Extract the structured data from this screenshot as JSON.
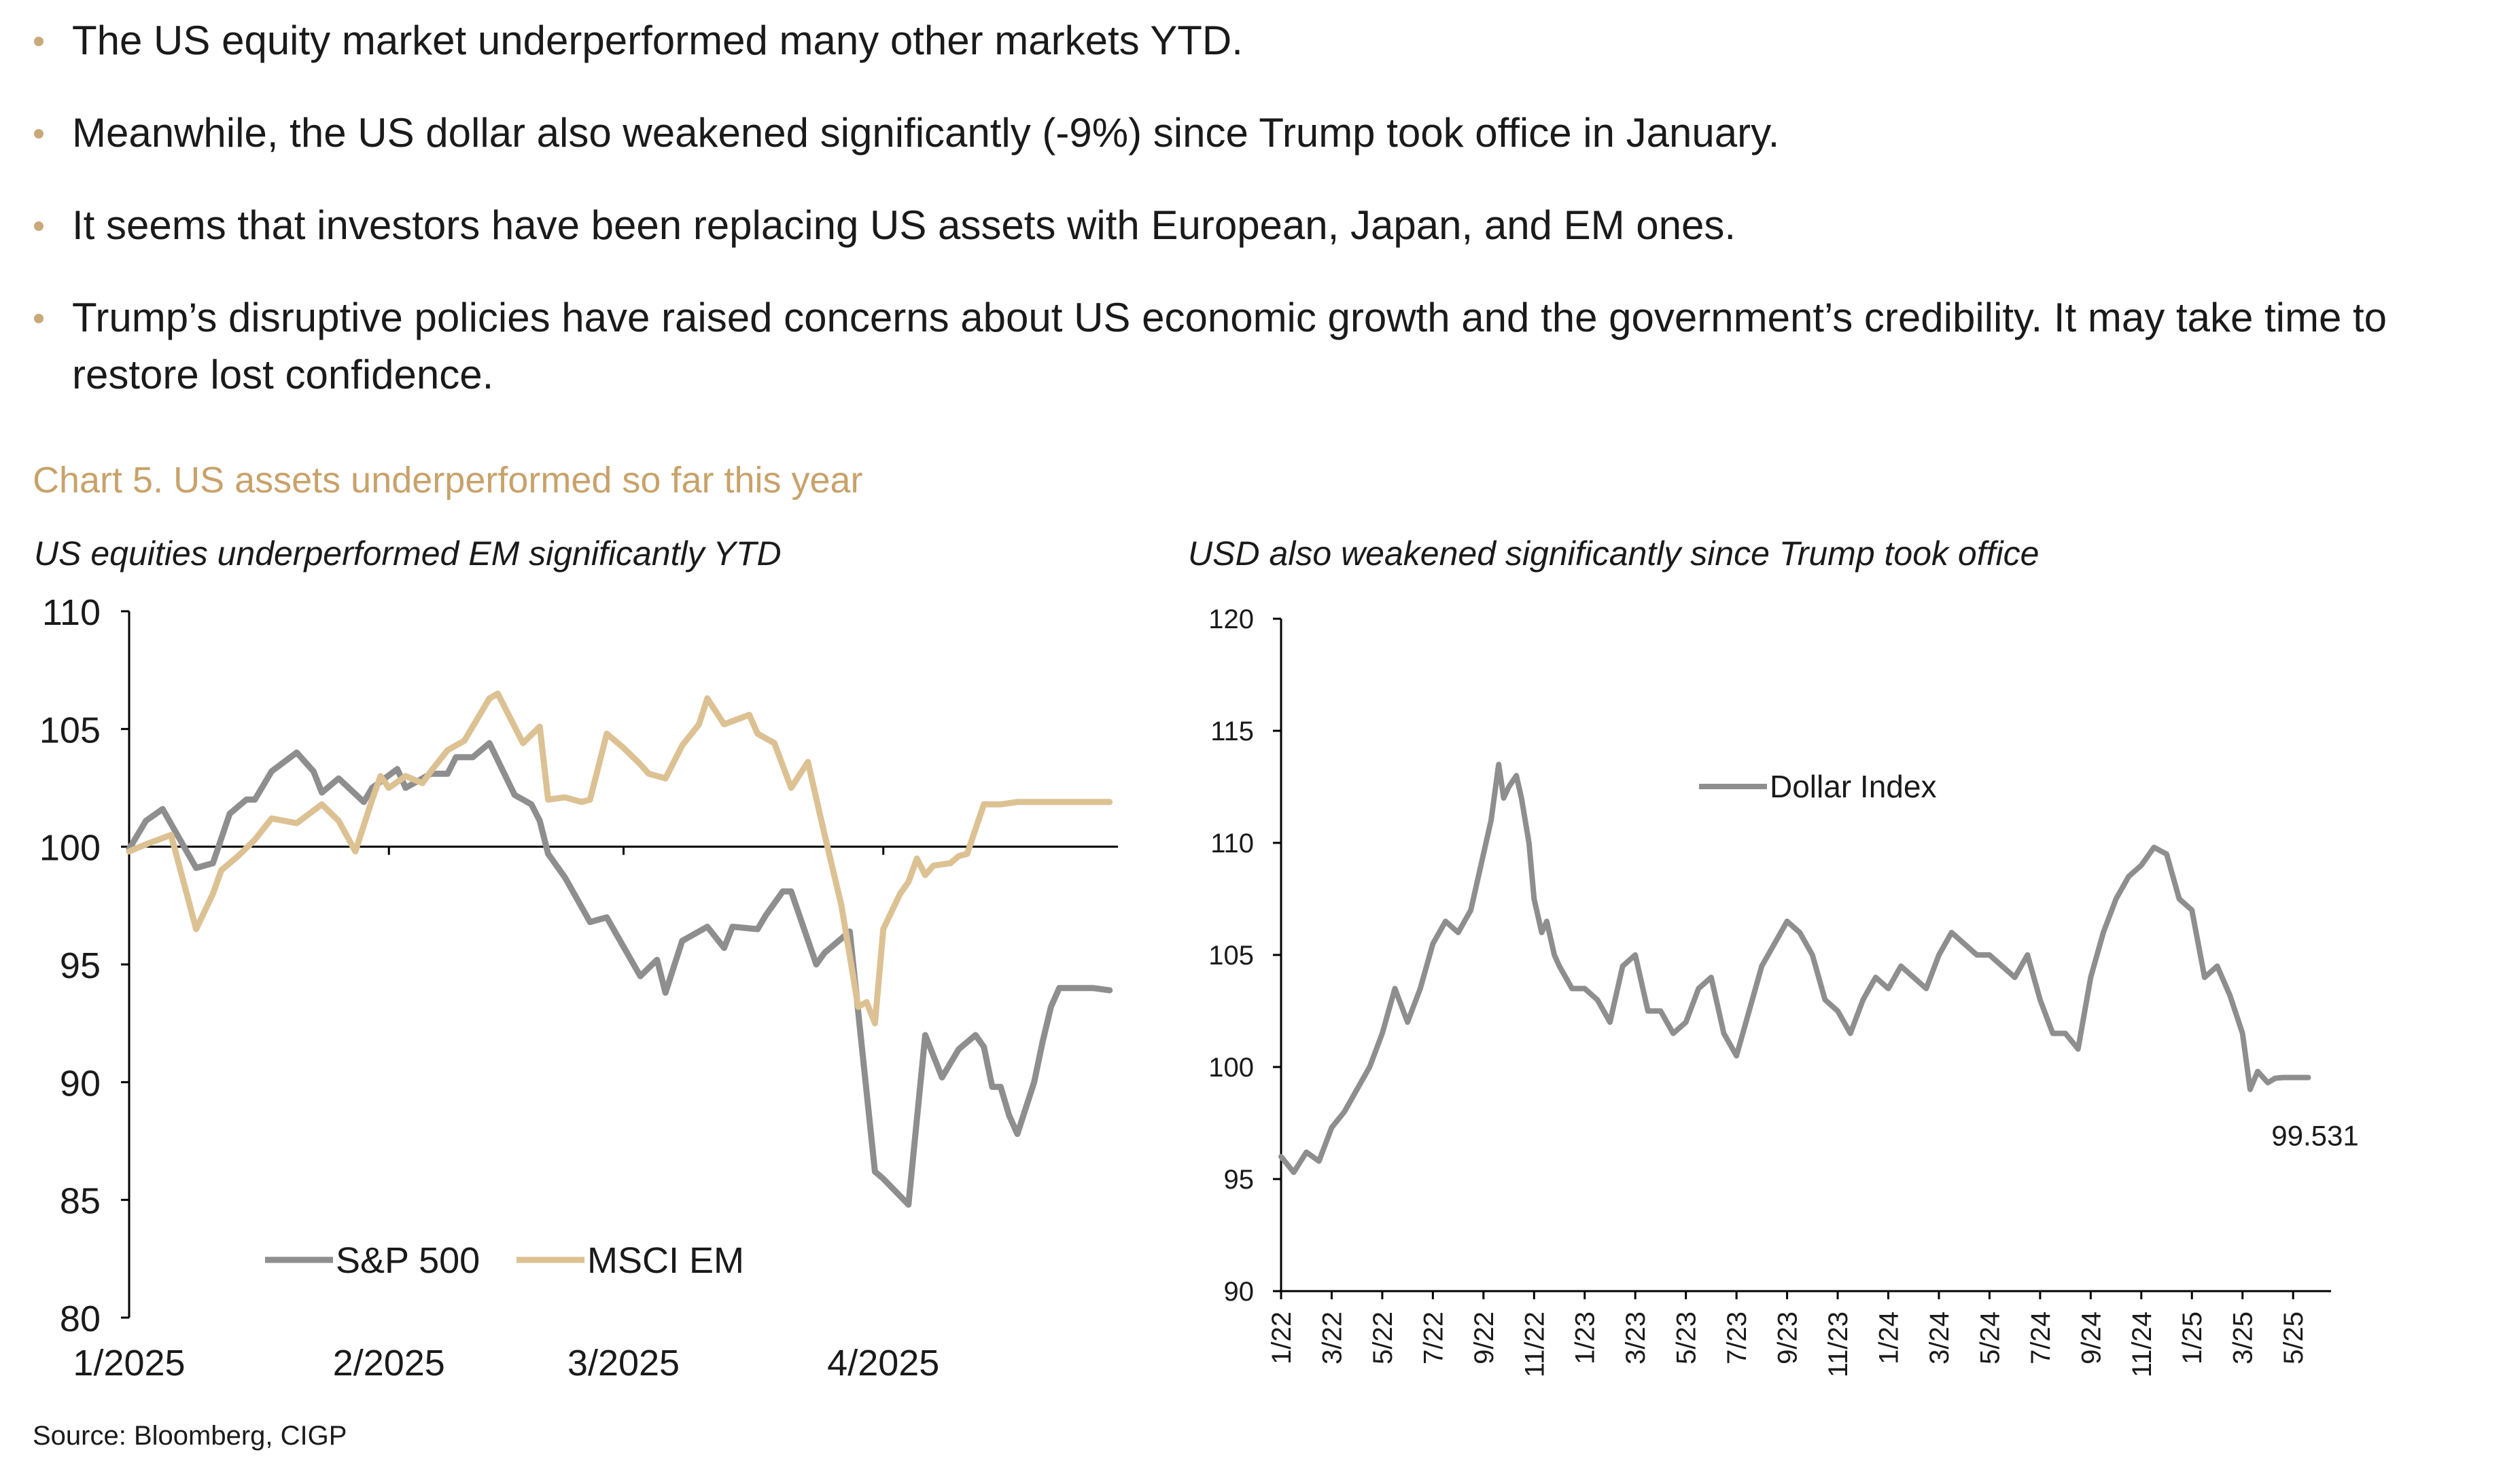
{
  "bullets": [
    "The US equity market underperformed many other markets YTD.",
    "Meanwhile, the US dollar also weakened significantly (-9%) since Trump took office in January.",
    "It seems that investors have been replacing US assets with European, Japan, and EM ones.",
    "Trump’s disruptive policies have raised concerns about US economic growth and the government’s credibility. It may take time to restore lost confidence."
  ],
  "chart_heading": "Chart 5. US assets underperformed so far this year",
  "source": "Source: Bloomberg, CIGP",
  "colors": {
    "sp500": "#8e8e8e",
    "msci_em": "#dcc193",
    "dollar": "#8e8e8e",
    "heading": "#c8a26b",
    "bullet": "#c8a97a"
  },
  "chart_data": [
    {
      "type": "line",
      "title": "US equities underperformed EM significantly YTD",
      "xlabel": "",
      "ylabel": "",
      "ylim": [
        80,
        110
      ],
      "yticks": [
        80,
        85,
        90,
        95,
        100,
        105,
        110
      ],
      "x_tick_labels": [
        "1/2025",
        "2/2025",
        "3/2025",
        "4/2025"
      ],
      "x_tick_days": [
        0,
        31,
        59,
        90
      ],
      "xlim_days": [
        0,
        118
      ],
      "reference_line": 100,
      "legend": {
        "position": "bottom-left",
        "entries": [
          "S&P 500",
          "MSCI EM"
        ]
      },
      "series": [
        {
          "name": "S&P 500",
          "days": [
            0,
            2,
            4,
            8,
            10,
            12,
            14,
            15,
            17,
            20,
            22,
            23,
            25,
            28,
            29,
            32,
            33,
            36,
            38,
            39,
            41,
            43,
            46,
            48,
            49,
            50,
            52,
            55,
            57,
            61,
            63,
            64,
            66,
            69,
            71,
            72,
            75,
            76,
            78,
            79,
            82,
            83,
            86,
            89,
            90,
            93,
            95,
            97,
            99,
            101,
            102,
            103,
            104,
            105,
            106,
            108,
            109,
            110,
            111,
            113,
            115,
            117
          ],
          "values": [
            99.9,
            101.1,
            101.6,
            99.1,
            99.3,
            101.4,
            102.0,
            102.0,
            103.2,
            104.0,
            103.2,
            102.3,
            102.9,
            101.9,
            102.5,
            103.3,
            102.5,
            103.1,
            103.1,
            103.8,
            103.8,
            104.4,
            102.2,
            101.8,
            101.1,
            99.7,
            98.7,
            96.8,
            97.0,
            94.5,
            95.2,
            93.8,
            96.0,
            96.6,
            95.7,
            96.6,
            96.5,
            97.1,
            98.1,
            98.1,
            95.0,
            95.5,
            96.4,
            86.2,
            85.9,
            84.8,
            92.0,
            90.2,
            91.4,
            92.0,
            91.5,
            89.8,
            89.8,
            88.6,
            87.8,
            90.0,
            91.7,
            93.2,
            94.0,
            94.0,
            94.0,
            93.9
          ],
          "color": "#8e8e8e"
        },
        {
          "name": "MSCI EM",
          "days": [
            0,
            2,
            5,
            8,
            10,
            11,
            13,
            15,
            17,
            20,
            23,
            25,
            27,
            29,
            30,
            31,
            33,
            35,
            36,
            38,
            40,
            43,
            44,
            47,
            49,
            50,
            52,
            54,
            55,
            57,
            59,
            61,
            62,
            64,
            66,
            68,
            69,
            71,
            74,
            75,
            77,
            79,
            81,
            83,
            84,
            85,
            87,
            88,
            89,
            90,
            92,
            93,
            94,
            95,
            96,
            98,
            99,
            100,
            102,
            104,
            106,
            107,
            108,
            110,
            112,
            114,
            116,
            117
          ],
          "values": [
            99.8,
            100.1,
            100.5,
            96.5,
            98.0,
            99.0,
            99.6,
            100.3,
            101.2,
            101.0,
            101.8,
            101.1,
            99.8,
            102.0,
            103.0,
            102.5,
            103.0,
            102.7,
            103.2,
            104.1,
            104.5,
            106.3,
            106.5,
            104.4,
            105.1,
            102.0,
            102.1,
            101.9,
            102.0,
            104.8,
            104.2,
            103.5,
            103.1,
            102.9,
            104.3,
            105.2,
            106.3,
            105.2,
            105.6,
            104.8,
            104.4,
            102.5,
            103.6,
            100.5,
            99.0,
            97.5,
            93.2,
            93.4,
            92.5,
            96.5,
            98.0,
            98.5,
            99.5,
            98.8,
            99.2,
            99.3,
            99.6,
            99.7,
            101.8,
            101.8,
            101.9,
            101.9,
            101.9,
            101.9,
            101.9,
            101.9,
            101.9,
            101.9
          ],
          "color": "#dcc193"
        }
      ]
    },
    {
      "type": "line",
      "title": "USD also weakened significantly since Trump took office",
      "xlabel": "",
      "ylabel": "",
      "ylim": [
        90,
        120
      ],
      "yticks": [
        90,
        95,
        100,
        105,
        110,
        115,
        120
      ],
      "x_tick_labels": [
        "1/22",
        "3/22",
        "5/22",
        "7/22",
        "9/22",
        "11/22",
        "1/23",
        "3/23",
        "5/23",
        "7/23",
        "9/23",
        "11/23",
        "1/24",
        "3/24",
        "5/24",
        "7/24",
        "9/24",
        "11/24",
        "1/25",
        "3/25",
        "5/25"
      ],
      "x_tick_months": [
        0,
        2,
        4,
        6,
        8,
        10,
        12,
        14,
        16,
        18,
        20,
        22,
        24,
        26,
        28,
        30,
        32,
        34,
        36,
        38,
        40
      ],
      "xlim_months": [
        0,
        41.5
      ],
      "legend": {
        "position": "top-center",
        "entries": [
          "Dollar Index"
        ]
      },
      "last_value_label": "99.531",
      "series": [
        {
          "name": "Dollar Index",
          "months": [
            0,
            0.5,
            1,
            1.5,
            2,
            2.5,
            3,
            3.5,
            4,
            4.5,
            5,
            5.5,
            6,
            6.5,
            7,
            7.5,
            8,
            8.3,
            8.6,
            8.8,
            9,
            9.3,
            9.5,
            9.8,
            10,
            10.3,
            10.5,
            10.8,
            11,
            11.5,
            12,
            12.5,
            13,
            13.5,
            14,
            14.5,
            15,
            15.5,
            16,
            16.5,
            17,
            17.5,
            18,
            18.5,
            19,
            19.5,
            20,
            20.5,
            21,
            21.5,
            22,
            22.5,
            23,
            23.5,
            24,
            24.5,
            25,
            25.5,
            26,
            26.5,
            27,
            27.5,
            28,
            28.5,
            29,
            29.5,
            30,
            30.5,
            31,
            31.5,
            32,
            32.5,
            33,
            33.5,
            34,
            34.5,
            35,
            35.5,
            36,
            36.5,
            37,
            37.5,
            38,
            38.3,
            38.6,
            39,
            39.3,
            39.6,
            40,
            40.2,
            40.4,
            40.6
          ],
          "values": [
            96.0,
            95.3,
            96.2,
            95.8,
            97.3,
            98.0,
            99.0,
            100.0,
            101.5,
            103.5,
            102.0,
            103.5,
            105.5,
            106.5,
            106.0,
            107.0,
            109.5,
            111.0,
            113.5,
            112.0,
            112.5,
            113.0,
            112.0,
            110.0,
            107.5,
            106.0,
            106.5,
            105.0,
            104.5,
            103.5,
            103.5,
            103.0,
            102.0,
            104.5,
            105.0,
            102.5,
            102.5,
            101.5,
            102.0,
            103.5,
            104.0,
            101.5,
            100.5,
            102.5,
            104.5,
            105.5,
            106.5,
            106.0,
            105.0,
            103.0,
            102.5,
            101.5,
            103.0,
            104.0,
            103.5,
            104.5,
            104.0,
            103.5,
            105.0,
            106.0,
            105.5,
            105.0,
            105.0,
            104.5,
            104.0,
            105.0,
            103.0,
            101.5,
            101.5,
            100.8,
            104.0,
            106.0,
            107.5,
            108.5,
            109.0,
            109.8,
            109.5,
            107.5,
            107.0,
            104.0,
            104.5,
            103.2,
            101.5,
            99.0,
            99.8,
            99.3,
            99.5,
            99.53,
            99.53,
            99.53,
            99.53,
            99.53
          ],
          "color": "#8e8e8e"
        }
      ]
    }
  ]
}
